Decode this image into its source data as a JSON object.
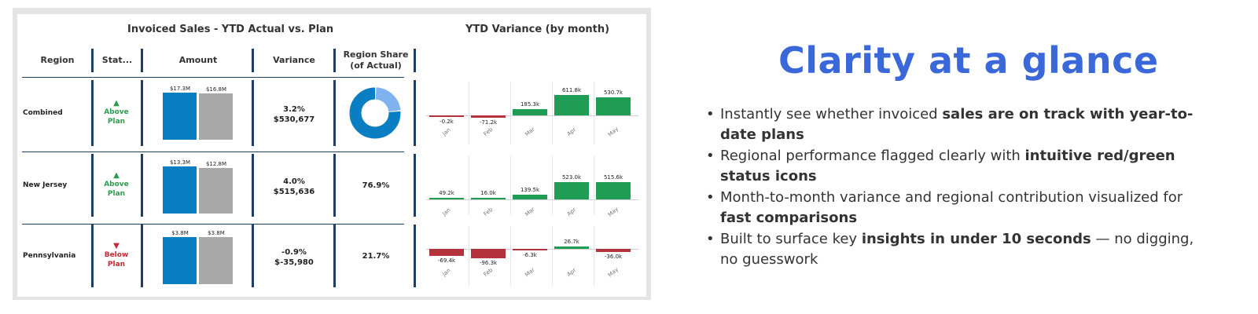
{
  "dashboard": {
    "left_title": "Invoiced Sales - YTD Actual vs. Plan",
    "right_title": "YTD Variance (by month)",
    "headers": {
      "region": "Region",
      "status": "Stat...",
      "amount": "Amount",
      "variance": "Variance",
      "share_line1": "Region Share",
      "share_line2": "(of Actual)"
    },
    "colors": {
      "actual": "#0a7ec2",
      "plan": "#a8a8a8",
      "positive": "#1f9d55",
      "negative": "#b3323c",
      "above": "#2e9b4e",
      "below": "#c62a35"
    },
    "months": [
      "Jan",
      "Feb",
      "Mar",
      "Apr",
      "May"
    ],
    "rows": [
      {
        "region": "Combined",
        "status_icon": "triangle-up-icon",
        "status_line1": "Above",
        "status_line2": "Plan",
        "actual_label": "$17.3M",
        "plan_label": "$16.8M",
        "actual_value": 17.3,
        "plan_value": 16.8,
        "variance_pct": "3.2%",
        "variance_amt": "$530,677",
        "share": "",
        "donut_fraction": 0.231,
        "monthly": {
          "values": [
            -0.2,
            -71.2,
            185.3,
            611.8,
            530.7
          ],
          "labels": [
            "-0.2k",
            "-71.2k",
            "185.3k",
            "611.8k",
            "530.7k"
          ]
        }
      },
      {
        "region": "New Jersey",
        "status_icon": "triangle-up-icon",
        "status_line1": "Above",
        "status_line2": "Plan",
        "actual_label": "$13.3M",
        "plan_label": "$12.8M",
        "actual_value": 13.3,
        "plan_value": 12.8,
        "variance_pct": "4.0%",
        "variance_amt": "$515,636",
        "share": "76.9%",
        "monthly": {
          "values": [
            49.2,
            16.0,
            139.5,
            523.0,
            515.6
          ],
          "labels": [
            "49.2k",
            "16.0k",
            "139.5k",
            "523.0k",
            "515.6k"
          ]
        }
      },
      {
        "region": "Pennsylvania",
        "status_icon": "triangle-down-icon",
        "status_line1": "Below",
        "status_line2": "Plan",
        "actual_label": "$3.8M",
        "plan_label": "$3.8M",
        "actual_value": 3.8,
        "plan_value": 3.8,
        "variance_pct": "-0.9%",
        "variance_amt": "$-35,980",
        "share": "21.7%",
        "monthly": {
          "values": [
            -69.4,
            -96.3,
            -6.3,
            26.7,
            -36.0
          ],
          "labels": [
            "-69.4k",
            "-96.3k",
            "-6.3k",
            "26.7k",
            "-36.0k"
          ]
        }
      }
    ]
  },
  "slide": {
    "headline": "Clarity at a glance",
    "bullets": [
      {
        "pre": "Instantly see whether invoiced ",
        "bold": "sales are on track with year-to-date plans",
        "post": ""
      },
      {
        "pre": "Regional performance flagged clearly with ",
        "bold": "intuitive red/green status icons",
        "post": ""
      },
      {
        "pre": "Month-to-month variance and regional contribution visualized for ",
        "bold": "fast comparisons",
        "post": ""
      },
      {
        "pre": "Built to surface key ",
        "bold": "insights in under 10 seconds",
        "post": " — no digging, no guesswork"
      }
    ]
  }
}
